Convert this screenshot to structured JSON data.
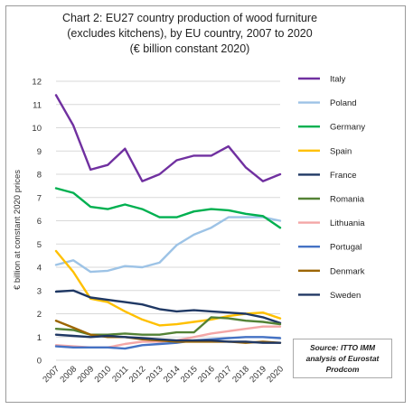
{
  "chart_data": {
    "type": "line",
    "title_lines": [
      "Chart 2: EU27 country production of wood furniture",
      "(excludes kitchens), by EU country, 2007 to 2020",
      "(€ billion constant 2020)"
    ],
    "ylabel": "€ billion at constant 2020 prices",
    "xlabel": "",
    "ylim": [
      0,
      12
    ],
    "yticks": [
      "0",
      "1",
      "2",
      "3",
      "4",
      "5",
      "6",
      "7",
      "8",
      "9",
      "10",
      "11",
      "12"
    ],
    "x": [
      "2007",
      "2008",
      "2009",
      "2010",
      "2011",
      "2012",
      "2013",
      "2014",
      "2015",
      "2016",
      "2017",
      "2018",
      "2019",
      "2020"
    ],
    "grid": true,
    "legend_position": "right",
    "series": [
      {
        "name": "Italy",
        "color": "#7030a0",
        "values": [
          11.4,
          10.1,
          8.2,
          8.4,
          9.1,
          7.7,
          8.0,
          8.6,
          8.8,
          8.8,
          9.2,
          8.3,
          7.7,
          8.0
        ]
      },
      {
        "name": "Poland",
        "color": "#9dc3e6",
        "values": [
          4.1,
          4.3,
          3.8,
          3.85,
          4.05,
          4.0,
          4.2,
          4.95,
          5.4,
          5.7,
          6.15,
          6.15,
          6.15,
          6.0
        ]
      },
      {
        "name": "Germany",
        "color": "#00b050",
        "values": [
          7.4,
          7.2,
          6.6,
          6.5,
          6.7,
          6.5,
          6.15,
          6.15,
          6.4,
          6.5,
          6.45,
          6.3,
          6.2,
          5.7
        ]
      },
      {
        "name": "Spain",
        "color": "#ffc000",
        "values": [
          4.7,
          3.8,
          2.65,
          2.5,
          2.1,
          1.75,
          1.5,
          1.55,
          1.65,
          1.75,
          1.9,
          2.0,
          2.05,
          1.8
        ]
      },
      {
        "name": "France",
        "color": "#1f3864",
        "values": [
          2.95,
          3.0,
          2.7,
          2.6,
          2.5,
          2.4,
          2.2,
          2.1,
          2.15,
          2.1,
          2.05,
          2.0,
          1.85,
          1.6
        ]
      },
      {
        "name": "Romania",
        "color": "#548235",
        "values": [
          1.35,
          1.3,
          1.1,
          1.1,
          1.15,
          1.1,
          1.1,
          1.2,
          1.2,
          1.85,
          1.8,
          1.7,
          1.65,
          1.55
        ]
      },
      {
        "name": "Lithuania",
        "color": "#f4a6a6",
        "values": [
          0.65,
          0.6,
          0.55,
          0.55,
          0.7,
          0.8,
          0.8,
          0.85,
          1.0,
          1.15,
          1.25,
          1.35,
          1.45,
          1.45
        ]
      },
      {
        "name": "Portugal",
        "color": "#4472c4",
        "values": [
          0.6,
          0.55,
          0.55,
          0.55,
          0.5,
          0.65,
          0.7,
          0.75,
          0.85,
          0.9,
          0.95,
          1.0,
          1.0,
          0.95
        ]
      },
      {
        "name": "Denmark",
        "color": "#9c6500",
        "values": [
          1.7,
          1.4,
          1.1,
          1.0,
          1.0,
          0.9,
          0.85,
          0.8,
          0.8,
          0.8,
          0.8,
          0.75,
          0.8,
          0.75
        ]
      },
      {
        "name": "Sweden",
        "color": "#203864",
        "values": [
          1.1,
          1.05,
          1.0,
          1.05,
          1.0,
          0.95,
          0.9,
          0.85,
          0.85,
          0.85,
          0.8,
          0.8,
          0.75,
          0.75
        ]
      }
    ],
    "source_note": "Source: ITTO IMM analysis of Eurostat Prodcom"
  }
}
